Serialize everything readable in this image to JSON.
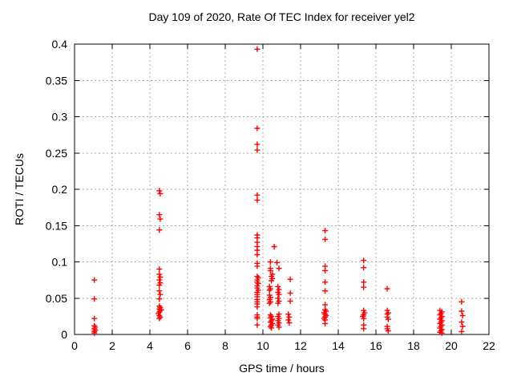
{
  "chart_data": {
    "type": "scatter",
    "title": "Day 109 of 2020, Rate Of TEC Index for receiver yel2",
    "xlabel": "GPS time / hours",
    "ylabel": "ROTI / TECUs",
    "xlim": [
      0,
      22
    ],
    "ylim": [
      0,
      0.4
    ],
    "xticks": [
      0,
      2,
      4,
      6,
      8,
      10,
      12,
      14,
      16,
      18,
      20,
      22
    ],
    "yticks": [
      0,
      0.05,
      0.1,
      0.15,
      0.2,
      0.25,
      0.3,
      0.35,
      0.4
    ],
    "ytick_labels": [
      "0",
      "0.05",
      "0.1",
      "0.15",
      "0.2",
      "0.25",
      "0.3",
      "0.35",
      "0.4"
    ],
    "grid": true,
    "legend": "none",
    "marker": {
      "shape": "plus",
      "color": "#ff0000"
    },
    "grid_color": "#a8a8a8",
    "axis_color": "#000000",
    "points": [
      [
        1.05,
        0.075
      ],
      [
        1.05,
        0.049
      ],
      [
        1.05,
        0.022
      ],
      [
        1.05,
        0.012
      ],
      [
        1.1,
        0.01
      ],
      [
        1.05,
        0.008
      ],
      [
        1.1,
        0.006
      ],
      [
        1.05,
        0.004
      ],
      [
        1.05,
        0.002
      ],
      [
        4.5,
        0.198
      ],
      [
        4.55,
        0.194
      ],
      [
        4.5,
        0.165
      ],
      [
        4.55,
        0.159
      ],
      [
        4.5,
        0.144
      ],
      [
        4.5,
        0.09
      ],
      [
        4.5,
        0.083
      ],
      [
        4.55,
        0.079
      ],
      [
        4.5,
        0.075
      ],
      [
        4.55,
        0.071
      ],
      [
        4.5,
        0.068
      ],
      [
        4.5,
        0.06
      ],
      [
        4.55,
        0.055
      ],
      [
        4.5,
        0.049
      ],
      [
        4.5,
        0.039
      ],
      [
        4.55,
        0.037
      ],
      [
        4.5,
        0.035
      ],
      [
        4.55,
        0.033
      ],
      [
        4.5,
        0.031
      ],
      [
        4.6,
        0.034
      ],
      [
        4.45,
        0.029
      ],
      [
        4.5,
        0.026
      ],
      [
        4.55,
        0.024
      ],
      [
        4.5,
        0.022
      ],
      [
        9.7,
        0.393
      ],
      [
        9.7,
        0.284
      ],
      [
        9.7,
        0.262
      ],
      [
        9.7,
        0.254
      ],
      [
        9.7,
        0.192
      ],
      [
        9.7,
        0.185
      ],
      [
        9.7,
        0.137
      ],
      [
        9.7,
        0.133
      ],
      [
        9.7,
        0.127
      ],
      [
        9.7,
        0.121
      ],
      [
        9.7,
        0.116
      ],
      [
        9.7,
        0.11
      ],
      [
        9.7,
        0.098
      ],
      [
        9.7,
        0.094
      ],
      [
        9.7,
        0.08
      ],
      [
        9.75,
        0.078
      ],
      [
        9.7,
        0.075
      ],
      [
        9.7,
        0.072
      ],
      [
        9.75,
        0.07
      ],
      [
        9.7,
        0.067
      ],
      [
        9.7,
        0.064
      ],
      [
        9.75,
        0.061
      ],
      [
        9.7,
        0.058
      ],
      [
        9.7,
        0.055
      ],
      [
        9.7,
        0.052
      ],
      [
        9.7,
        0.048
      ],
      [
        9.7,
        0.045
      ],
      [
        9.7,
        0.042
      ],
      [
        9.7,
        0.038
      ],
      [
        9.7,
        0.027
      ],
      [
        9.7,
        0.024
      ],
      [
        9.7,
        0.022
      ],
      [
        9.7,
        0.013
      ],
      [
        10.6,
        0.121
      ],
      [
        10.4,
        0.1
      ],
      [
        10.75,
        0.099
      ],
      [
        10.85,
        0.091
      ],
      [
        10.4,
        0.091
      ],
      [
        10.4,
        0.088
      ],
      [
        10.5,
        0.083
      ],
      [
        10.45,
        0.08
      ],
      [
        10.5,
        0.077
      ],
      [
        10.45,
        0.074
      ],
      [
        10.35,
        0.066
      ],
      [
        10.4,
        0.063
      ],
      [
        10.35,
        0.061
      ],
      [
        10.8,
        0.066
      ],
      [
        10.85,
        0.062
      ],
      [
        10.8,
        0.058
      ],
      [
        10.85,
        0.055
      ],
      [
        10.35,
        0.054
      ],
      [
        10.4,
        0.051
      ],
      [
        10.35,
        0.048
      ],
      [
        10.4,
        0.045
      ],
      [
        10.35,
        0.043
      ],
      [
        10.8,
        0.05
      ],
      [
        10.85,
        0.046
      ],
      [
        10.8,
        0.043
      ],
      [
        10.4,
        0.027
      ],
      [
        10.45,
        0.025
      ],
      [
        10.4,
        0.023
      ],
      [
        10.5,
        0.021
      ],
      [
        10.45,
        0.019
      ],
      [
        10.4,
        0.017
      ],
      [
        10.5,
        0.015
      ],
      [
        10.45,
        0.013
      ],
      [
        10.4,
        0.011
      ],
      [
        10.45,
        0.009
      ],
      [
        10.85,
        0.028
      ],
      [
        10.8,
        0.025
      ],
      [
        10.85,
        0.022
      ],
      [
        10.8,
        0.019
      ],
      [
        10.85,
        0.016
      ],
      [
        10.8,
        0.013
      ],
      [
        10.85,
        0.01
      ],
      [
        11.45,
        0.076
      ],
      [
        11.45,
        0.057
      ],
      [
        11.45,
        0.046
      ],
      [
        11.35,
        0.028
      ],
      [
        11.4,
        0.024
      ],
      [
        11.35,
        0.02
      ],
      [
        11.4,
        0.016
      ],
      [
        13.3,
        0.143
      ],
      [
        13.3,
        0.131
      ],
      [
        13.3,
        0.094
      ],
      [
        13.3,
        0.088
      ],
      [
        13.3,
        0.072
      ],
      [
        13.3,
        0.06
      ],
      [
        13.3,
        0.041
      ],
      [
        13.3,
        0.034
      ],
      [
        13.35,
        0.032
      ],
      [
        13.25,
        0.03
      ],
      [
        13.3,
        0.028
      ],
      [
        13.35,
        0.026
      ],
      [
        13.3,
        0.024
      ],
      [
        13.25,
        0.022
      ],
      [
        13.3,
        0.02
      ],
      [
        13.3,
        0.015
      ],
      [
        15.35,
        0.102
      ],
      [
        15.35,
        0.092
      ],
      [
        15.35,
        0.072
      ],
      [
        15.35,
        0.065
      ],
      [
        15.35,
        0.033
      ],
      [
        15.4,
        0.03
      ],
      [
        15.35,
        0.027
      ],
      [
        15.3,
        0.025
      ],
      [
        15.35,
        0.022
      ],
      [
        15.35,
        0.013
      ],
      [
        15.35,
        0.008
      ],
      [
        16.6,
        0.063
      ],
      [
        16.6,
        0.033
      ],
      [
        16.65,
        0.03
      ],
      [
        16.6,
        0.028
      ],
      [
        16.6,
        0.024
      ],
      [
        16.65,
        0.021
      ],
      [
        16.6,
        0.011
      ],
      [
        16.6,
        0.008
      ],
      [
        16.65,
        0.005
      ],
      [
        19.4,
        0.033
      ],
      [
        19.5,
        0.031
      ],
      [
        19.45,
        0.029
      ],
      [
        19.4,
        0.027
      ],
      [
        19.5,
        0.025
      ],
      [
        19.45,
        0.023
      ],
      [
        19.4,
        0.021
      ],
      [
        19.5,
        0.019
      ],
      [
        19.45,
        0.017
      ],
      [
        19.4,
        0.015
      ],
      [
        19.5,
        0.013
      ],
      [
        19.45,
        0.011
      ],
      [
        19.4,
        0.009
      ],
      [
        19.5,
        0.007
      ],
      [
        19.45,
        0.005
      ],
      [
        19.4,
        0.003
      ],
      [
        19.5,
        0.002
      ],
      [
        20.55,
        0.045
      ],
      [
        20.55,
        0.032
      ],
      [
        20.6,
        0.026
      ],
      [
        20.55,
        0.017
      ],
      [
        20.6,
        0.011
      ],
      [
        20.55,
        0.004
      ]
    ]
  }
}
